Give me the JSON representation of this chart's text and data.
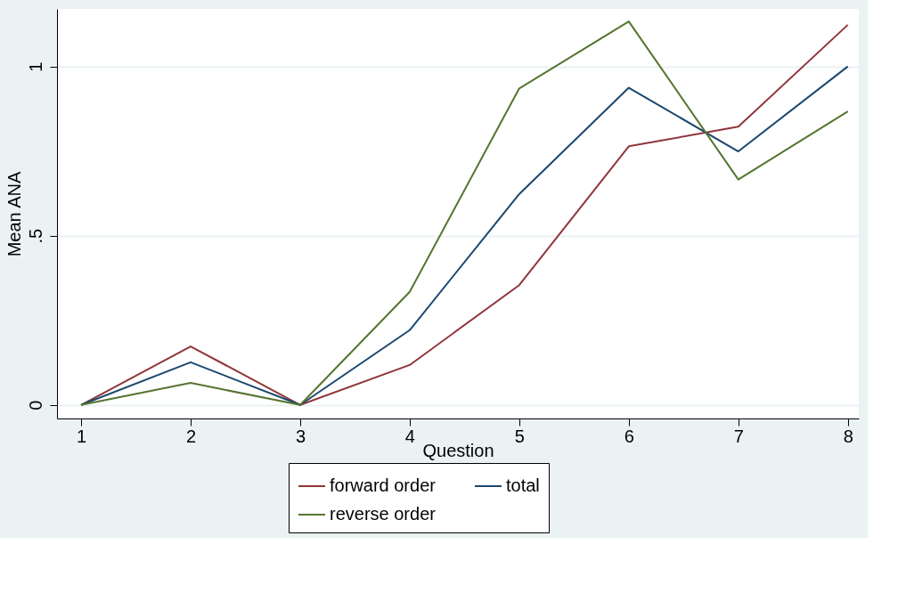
{
  "chart_data": {
    "type": "line",
    "xlabel": "Question",
    "ylabel": "Mean ANA",
    "x": [
      1,
      2,
      3,
      4,
      5,
      6,
      7,
      8
    ],
    "series": [
      {
        "name": "forward order",
        "color": "#90353b",
        "values": [
          0,
          0.173,
          0,
          0.118,
          0.354,
          0.764,
          0.822,
          1.123
        ]
      },
      {
        "name": "total",
        "color": "#1a476f",
        "values": [
          0,
          0.126,
          0,
          0.221,
          0.623,
          0.937,
          0.749,
          1.0
        ]
      },
      {
        "name": "reverse order",
        "color": "#55752f",
        "values": [
          0,
          0.065,
          0,
          0.334,
          0.935,
          1.133,
          0.666,
          0.867
        ]
      }
    ],
    "xlim": [
      0.78,
      8.1
    ],
    "xticks": [
      1,
      2,
      3,
      4,
      5,
      6,
      7,
      8
    ],
    "ylim": [
      -0.04,
      1.17
    ],
    "yticks": [
      0,
      {
        "value": 0.5,
        "label": ".5"
      },
      1
    ],
    "grid": "y",
    "legend": "bottom",
    "marker": "none",
    "line_style": "solid"
  }
}
